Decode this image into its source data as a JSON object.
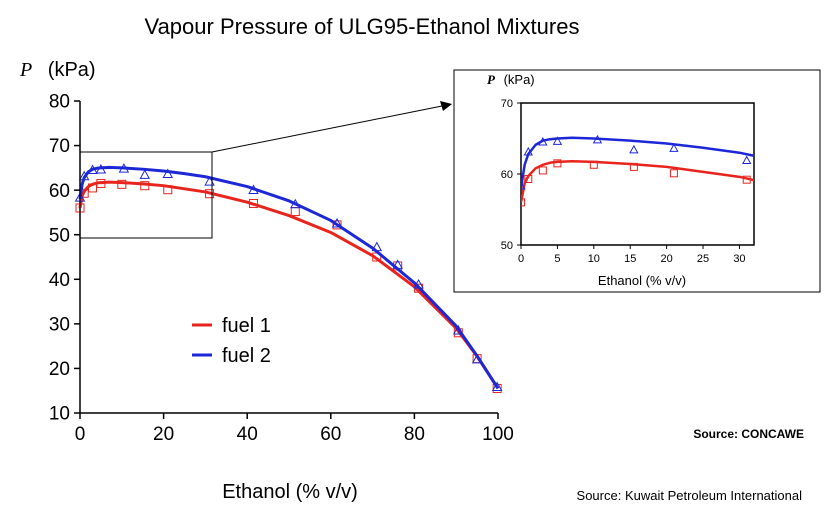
{
  "colors": {
    "fuel1": "#e8241c",
    "fuel2": "#1c28d8"
  },
  "chart_data": [
    {
      "type": "line",
      "title": "Vapour Pressure of ULG95-Ethanol Mixtures",
      "ylabel_symbol": "P",
      "ylabel_unit": "(kPa)",
      "xlabel": "Ethanol (% v/v)",
      "xlim": [
        0,
        100
      ],
      "ylim": [
        10,
        80
      ],
      "xticks": [
        0,
        20,
        40,
        60,
        80,
        100
      ],
      "yticks": [
        10,
        20,
        30,
        40,
        50,
        60,
        70,
        80
      ],
      "legend_position": "center-left",
      "series": [
        {
          "name": "fuel 1",
          "color": "#e8241c",
          "marker": "square",
          "curve": [
            [
              0,
              56
            ],
            [
              0.5,
              58.7
            ],
            [
              1,
              59.7
            ],
            [
              2,
              60.8
            ],
            [
              3,
              61.3
            ],
            [
              4,
              61.6
            ],
            [
              5,
              61.7
            ],
            [
              7,
              61.8
            ],
            [
              10,
              61.7
            ],
            [
              15,
              61.4
            ],
            [
              20,
              61
            ],
            [
              25,
              60.3
            ],
            [
              30,
              59.6
            ],
            [
              40,
              57.3
            ],
            [
              50,
              54.3
            ],
            [
              60,
              50.5
            ],
            [
              70,
              45.3
            ],
            [
              80,
              38.3
            ],
            [
              90,
              29
            ],
            [
              95,
              22.7
            ],
            [
              100,
              15.5
            ]
          ],
          "points": [
            [
              0,
              56
            ],
            [
              1,
              59.3
            ],
            [
              3,
              60.5
            ],
            [
              5,
              61.5
            ],
            [
              10,
              61.3
            ],
            [
              15.5,
              61
            ],
            [
              21,
              60.1
            ],
            [
              31,
              59.2
            ],
            [
              41.5,
              57
            ],
            [
              51.5,
              55.2
            ],
            [
              61.5,
              52.2
            ],
            [
              71,
              45
            ],
            [
              76,
              43
            ],
            [
              81,
              38
            ],
            [
              90.5,
              28
            ],
            [
              95,
              22.2
            ],
            [
              99.8,
              15.5
            ]
          ]
        },
        {
          "name": "fuel 2",
          "color": "#1c28d8",
          "marker": "triangle",
          "curve": [
            [
              0,
              58
            ],
            [
              0.5,
              61.3
            ],
            [
              1,
              62.8
            ],
            [
              2,
              64.1
            ],
            [
              3,
              64.7
            ],
            [
              4,
              64.9
            ],
            [
              5,
              65
            ],
            [
              7,
              65.1
            ],
            [
              10,
              65
            ],
            [
              15,
              64.7
            ],
            [
              20,
              64.3
            ],
            [
              25,
              63.7
            ],
            [
              30,
              63
            ],
            [
              40,
              60.8
            ],
            [
              50,
              57.6
            ],
            [
              60,
              53.2
            ],
            [
              70,
              47
            ],
            [
              80,
              39.2
            ],
            [
              90,
              29.5
            ],
            [
              95,
              22.8
            ],
            [
              100,
              15.5
            ]
          ],
          "points": [
            [
              0,
              58.3
            ],
            [
              1,
              63.1
            ],
            [
              3,
              64.5
            ],
            [
              5,
              64.6
            ],
            [
              10.5,
              64.8
            ],
            [
              15.5,
              63.4
            ],
            [
              21,
              63.6
            ],
            [
              31,
              61.9
            ],
            [
              41.5,
              60
            ],
            [
              51.5,
              56.8
            ],
            [
              61.5,
              52.5
            ],
            [
              71,
              47.2
            ],
            [
              76,
              43.2
            ],
            [
              81,
              38.8
            ],
            [
              90.5,
              28.5
            ],
            [
              95,
              22
            ],
            [
              99.8,
              15.8
            ]
          ]
        }
      ]
    },
    {
      "type": "line",
      "title": "",
      "ylabel_symbol": "P",
      "ylabel_unit": "(kPa)",
      "xlabel": "Ethanol (% v/v)",
      "xlim": [
        0,
        32
      ],
      "ylim": [
        50,
        70
      ],
      "xticks": [
        0,
        5,
        10,
        15,
        20,
        25,
        30
      ],
      "yticks": [
        50,
        60,
        70
      ]
    }
  ],
  "sources": {
    "concawe": "Source: CONCAWE",
    "kuwait": "Source: Kuwait Petroleum International"
  }
}
